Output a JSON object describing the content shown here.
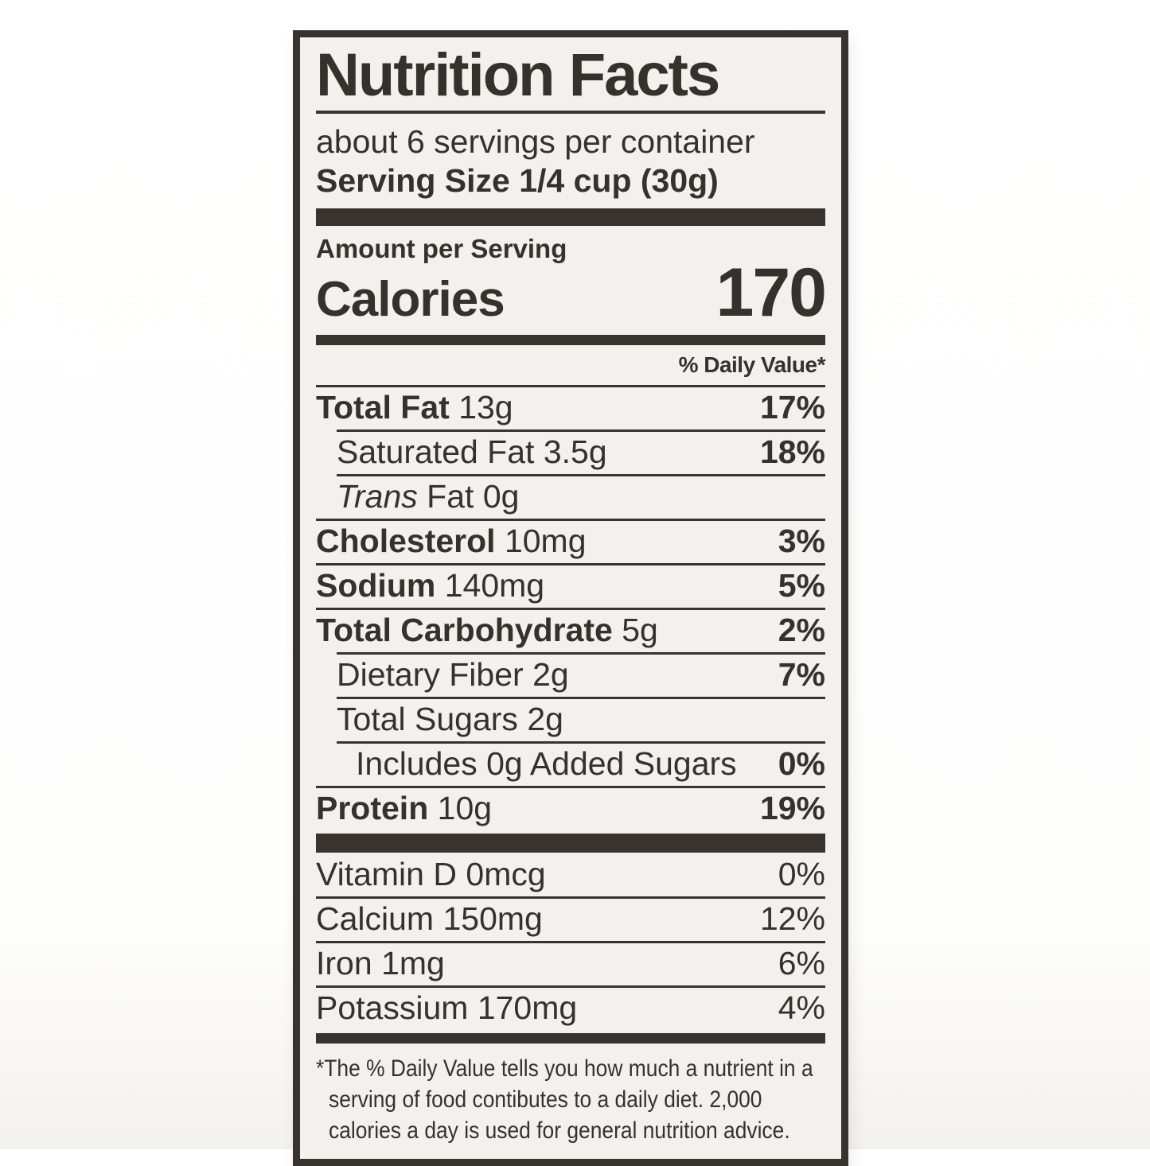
{
  "title": "Nutrition Facts",
  "servings_per_container": "about 6 servings per container",
  "serving_size": "Serving Size 1/4 cup (30g)",
  "amount_per_serving": "Amount per Serving",
  "calories": {
    "label": "Calories",
    "value": "170"
  },
  "daily_value_header": "% Daily Value*",
  "nutrients": [
    {
      "name": "Total Fat",
      "amount": "13g",
      "dv": "17%"
    },
    {
      "name": "Saturated Fat",
      "amount": "3.5g",
      "dv": "18%"
    },
    {
      "name_italic": "Trans",
      "name": "Fat",
      "amount": "0g",
      "dv": ""
    },
    {
      "name": "Cholesterol",
      "amount": "10mg",
      "dv": "3%"
    },
    {
      "name": "Sodium",
      "amount": "140mg",
      "dv": "5%"
    },
    {
      "name": "Total Carbohydrate",
      "amount": "5g",
      "dv": "2%"
    },
    {
      "name": "Dietary Fiber",
      "amount": "2g",
      "dv": "7%"
    },
    {
      "name": "Total Sugars",
      "amount": "2g",
      "dv": ""
    },
    {
      "name": "Includes 0g Added Sugars",
      "amount": "",
      "dv": "0%"
    },
    {
      "name": "Protein",
      "amount": "10g",
      "dv": "19%"
    }
  ],
  "vitamins": [
    {
      "name": "Vitamin D",
      "amount": "0mcg",
      "dv": "0%"
    },
    {
      "name": "Calcium",
      "amount": "150mg",
      "dv": "12%"
    },
    {
      "name": "Iron",
      "amount": "1mg",
      "dv": "6%"
    },
    {
      "name": "Potassium",
      "amount": "170mg",
      "dv": "4%"
    }
  ],
  "footnote_lines": [
    "*The % Daily Value tells you how much a nutrient in a",
    "serving of food contibutes to a daily diet. 2,000",
    "calories a day is used for general nutrition advice."
  ],
  "colors": {
    "ink": "#38332f",
    "label_bg": "#f3f1ee",
    "page_bg": "#ffffff"
  }
}
